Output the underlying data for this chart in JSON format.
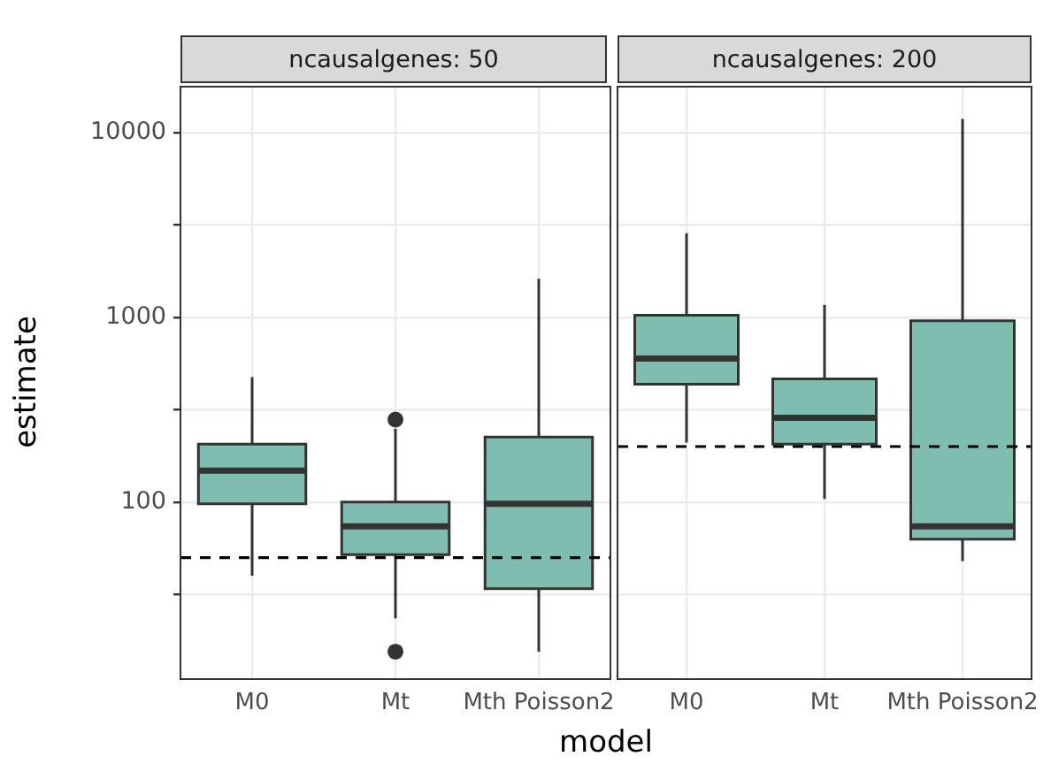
{
  "chart_data": [
    {
      "type": "box",
      "title": "ncausalgenes: 50",
      "xlabel": "model",
      "ylabel": "estimate",
      "categories": [
        "M0",
        "Mt",
        "Mth Poisson2"
      ],
      "color": "#80bdb1",
      "boxes": [
        {
          "low": 40,
          "q1": 98,
          "median": 148,
          "q3": 206,
          "high": 475
        },
        {
          "low": 23.5,
          "q1": 52,
          "median": 74,
          "q3": 100,
          "high": 250,
          "outliers": [
            15.5,
            280
          ]
        },
        {
          "low": 15.5,
          "q1": 34,
          "median": 98,
          "q3": 225,
          "high": 1620
        }
      ],
      "log": "y",
      "ylim": [
        11,
        17800
      ],
      "yticks": [
        {
          "value": 31.6,
          "label": null
        },
        100,
        {
          "value": 316,
          "label": null
        },
        1000,
        {
          "value": 3162,
          "label": null
        },
        10000
      ],
      "grid": true,
      "ref_lines": [
        {
          "axis": "y",
          "value": 50,
          "color": "#000000",
          "line_style": "dashed"
        }
      ]
    },
    {
      "type": "box",
      "title": "ncausalgenes: 200",
      "categories": [
        "M0",
        "Mt",
        "Mth Poisson2"
      ],
      "color": "#80bdb1",
      "boxes": [
        {
          "low": 210,
          "q1": 435,
          "median": 600,
          "q3": 1030,
          "high": 2860
        },
        {
          "low": 104,
          "q1": 206,
          "median": 286,
          "q3": 465,
          "high": 1170
        },
        {
          "low": 48,
          "q1": 63,
          "median": 74,
          "q3": 960,
          "high": 11900
        }
      ],
      "log": "y",
      "ylim": [
        11,
        17800
      ],
      "yticks": [
        {
          "value": 31.6,
          "label": null
        },
        100,
        {
          "value": 316,
          "label": null
        },
        1000,
        {
          "value": 3162,
          "label": null
        },
        10000
      ],
      "grid": true,
      "tick_labels": "x",
      "ref_lines": [
        {
          "axis": "y",
          "value": 200,
          "color": "#000000",
          "line_style": "dashed"
        }
      ]
    }
  ]
}
